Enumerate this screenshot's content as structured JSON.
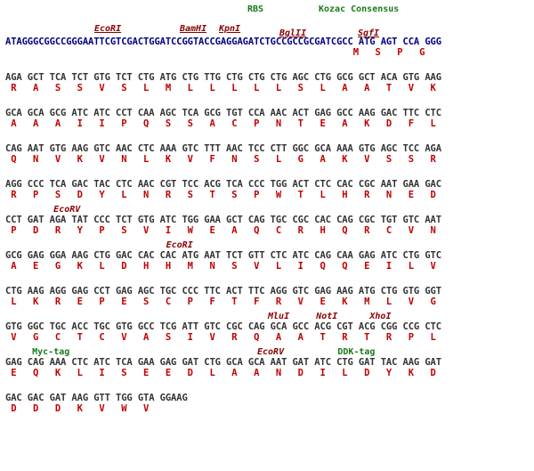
{
  "annotations_top": {
    "rbs": "RBS",
    "kozac": "Kozac Consensus",
    "ecori": "EcoRI",
    "bamhi": "BamHI",
    "kpni": "KpnI",
    "bglii": "BglII",
    "sgfi": "SgfI"
  },
  "line1": {
    "nt": "ATAGGGCGGCCGGGAATTCGTCGACTGGATCCGGTACCGAGGAGATCTGCCGCCGCGATCGCC ATG AGT CCA GGG",
    "aa": "                                                               M   S   P   G"
  },
  "blocks": [
    {
      "label": "",
      "nt": "AGA GCT TCA TCT GTG TCT CTG ATG CTG TTG CTG CTG CTG AGC CTG GCG GCT ACA GTG AAG",
      "aa": " R   A   S   S   V   S   L   M   L   L   L   L   L   S   L   A   A   T   V   K"
    },
    {
      "label": "",
      "nt": "GCA GCA GCG ATC ATC CCT CAA AGC TCA GCG TGT CCA AAC ACT GAG GCC AAG GAC TTC CTC",
      "aa": " A   A   A   I   I   P   Q   S   S   A   C   P   N   T   E   A   K   D   F   L"
    },
    {
      "label": "",
      "nt": "CAG AAT GTG AAG GTC AAC CTC AAA GTC TTT AAC TCC CTT GGC GCA AAA GTG AGC TCC AGA",
      "aa": " Q   N   V   K   V   N   L   K   V   F   N   S   L   G   A   K   V   S   S   R"
    },
    {
      "label": "",
      "nt": "AGG CCC TCA GAC TAC CTC AAC CGT TCC ACG TCA CCC TGG ACT CTC CAC CGC AAT GAA GAC",
      "aa": " R   P   S   D   Y   L   N   R   S   T   S   P   W   T   L   H   R   N   E   D"
    },
    {
      "label": "         EcoRV",
      "nt": "CCT GAT AGA TAT CCC TCT GTG ATC TGG GAA GCT CAG TGC CGC CAC CAG CGC TGT GTC AAT",
      "aa": " P   D   R   Y   P   S   V   I   W   E   A   Q   C   R   H   Q   R   C   V   N"
    },
    {
      "label": "                              EcoRI",
      "nt": "GCG GAG GGA AAG CTG GAC CAC CAC ATG AAT TCT GTT CTC ATC CAG CAA GAG ATC CTG GTC",
      "aa": " A   E   G   K   L   D   H   H   M   N   S   V   L   I   Q   Q   E   I   L   V"
    },
    {
      "label": "",
      "nt": "CTG AAG AGG GAG CCT GAG AGC TGC CCC TTC ACT TTC AGG GTC GAG AAG ATG CTG GTG GGT",
      "aa": " L   K   R   E   P   E   S   C   P   F   T   F   R   V   E   K   M   L   V   G"
    },
    {
      "label": "                                                 MluI     NotI      XhoI",
      "nt": "GTG GGC TGC ACC TGC GTG GCC TCG ATT GTC CGC CAG GCA GCC ACG CGT ACG CGG CCG CTC",
      "aa": " V   G   C   T   C   V   A   S   I   V   R   Q   A   A   T   R   T   R   P   L"
    },
    {
      "label": "     Myc-tag                                   EcoRV          DDK-tag",
      "nt": "GAG CAG AAA CTC ATC TCA GAA GAG GAT CTG GCA GCA AAT GAT ATC CTG GAT TAC AAG GAT",
      "aa": " E   Q   K   L   I   S   E   E   D   L   A   A   N   D   I   L   D   Y   K   D"
    },
    {
      "label": "",
      "nt": "GAC GAC GAT AAG GTT TGG GTA GGAAG",
      "aa": " D   D   D   K   V   W   V"
    }
  ]
}
